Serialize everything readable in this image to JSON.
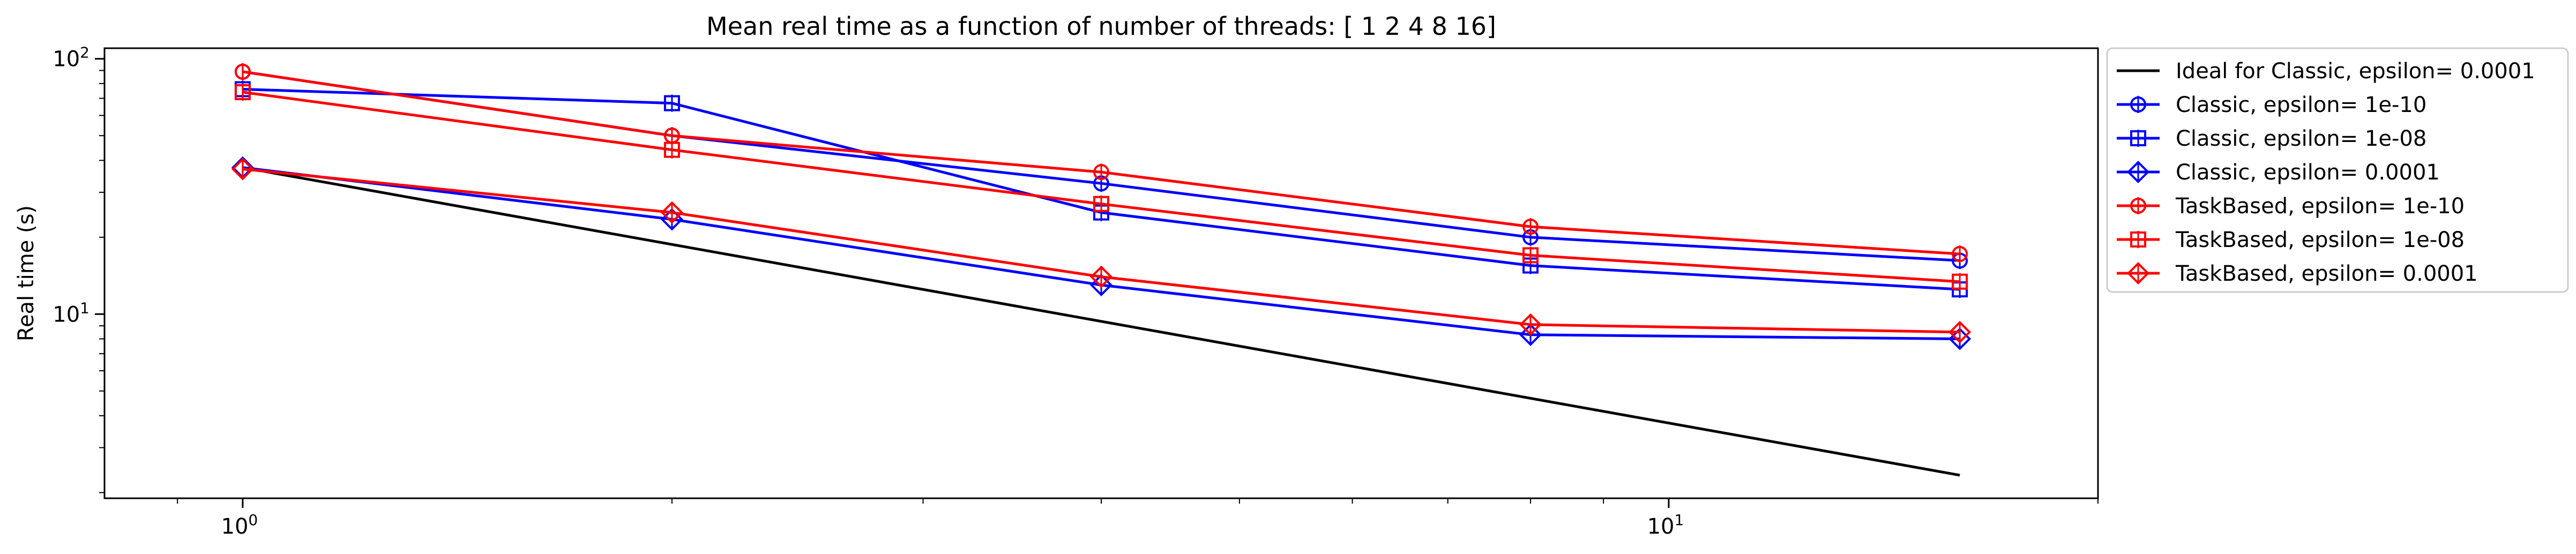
{
  "chart_data": {
    "type": "line",
    "title": "Mean real time as a function of number of threads: [ 1  2  4  8 16]",
    "xlabel": "",
    "ylabel": "Real time (s)",
    "x_scale": "log",
    "y_scale": "log",
    "xlim": [
      0.8,
      20
    ],
    "ylim": [
      1.9,
      110
    ],
    "x_ticks": [
      {
        "value": 1,
        "label": "10",
        "exp": "0"
      },
      {
        "value": 10,
        "label": "10",
        "exp": "1"
      }
    ],
    "y_ticks": [
      {
        "value": 10,
        "label": "10",
        "exp": "1"
      },
      {
        "value": 100,
        "label": "10",
        "exp": "2"
      }
    ],
    "grid": false,
    "legend_position": "outside right",
    "x": [
      1,
      2,
      4,
      8,
      16
    ],
    "series": [
      {
        "name": "Ideal for Classic, epsilon= 0.0001",
        "color": "#000000",
        "marker": "none",
        "x": [
          1,
          16
        ],
        "values": [
          37.5,
          2.34
        ]
      },
      {
        "name": "Classic, epsilon= 1e-10",
        "color": "#0000ff",
        "marker": "circle",
        "values": [
          89,
          50,
          32.5,
          20,
          16.2
        ]
      },
      {
        "name": "Classic, epsilon= 1e-08",
        "color": "#0000ff",
        "marker": "square",
        "values": [
          76,
          67,
          25,
          15.5,
          12.5
        ]
      },
      {
        "name": "Classic, epsilon= 0.0001",
        "color": "#0000ff",
        "marker": "diamond",
        "values": [
          37.5,
          23.5,
          13,
          8.3,
          8.0
        ]
      },
      {
        "name": "TaskBased, epsilon= 1e-10",
        "color": "#ff0000",
        "marker": "circle",
        "values": [
          89,
          50,
          36,
          22,
          17.2
        ]
      },
      {
        "name": "TaskBased, epsilon= 1e-08",
        "color": "#ff0000",
        "marker": "square",
        "values": [
          74,
          44,
          27,
          17,
          13.4
        ]
      },
      {
        "name": "TaskBased, epsilon= 0.0001",
        "color": "#ff0000",
        "marker": "diamond",
        "values": [
          37,
          25,
          14,
          9.1,
          8.5
        ]
      }
    ]
  }
}
